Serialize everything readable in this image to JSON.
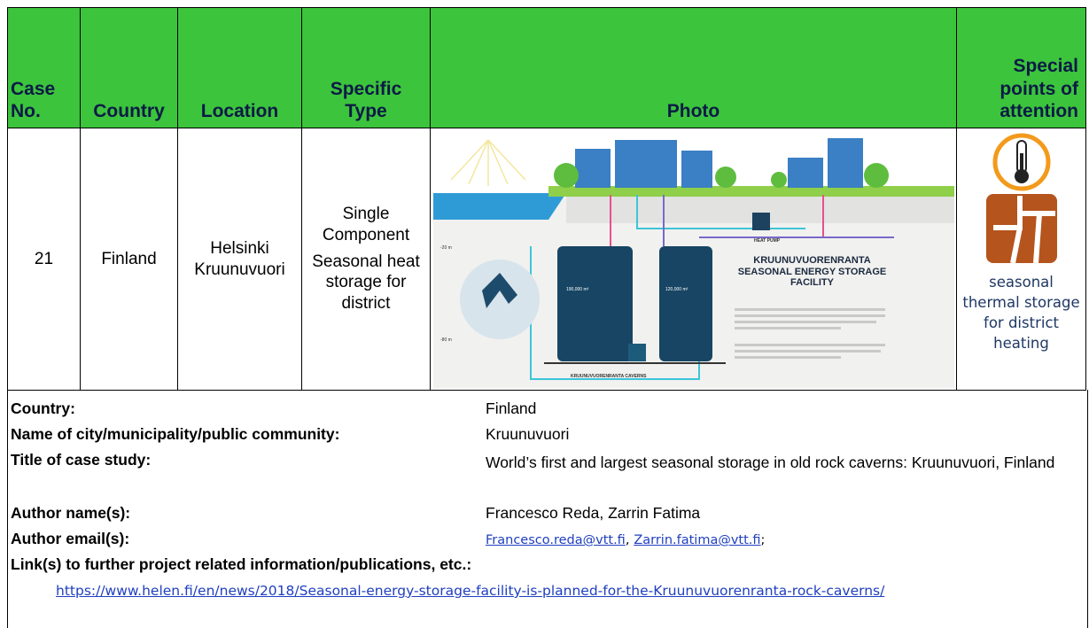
{
  "table": {
    "headers": [
      "Case No.",
      "Country",
      "Location",
      "Specific Type",
      "Photo",
      "Special points of attention"
    ],
    "row": {
      "case_no": "21",
      "country": "Finland",
      "location": "Helsinki Kruunuvuori",
      "specific_type": [
        "Single Component",
        "Seasonal heat storage for district"
      ],
      "photo": {
        "title": "KRUUNUVUORENRANTA SEASONAL ENERGY STORAGE FACILITY",
        "caverns": "KRUUNUVUORENRANTA CAVERNS",
        "heat_pump": "HEAT PUMP",
        "volume_left": "190,000 m³",
        "volume_right": "120,000 m³",
        "depth_top": "-20 m",
        "depth_bottom": "-80 m"
      },
      "special_points": "seasonal thermal storage for district heating"
    }
  },
  "info": {
    "fields": [
      {
        "label": "Country:",
        "value": "Finland"
      },
      {
        "label": "Name of city/municipality/public community:",
        "value": "Kruunuvuori"
      },
      {
        "label": "Title of case study:",
        "value": "World’s first and largest seasonal storage in old rock caverns: Kruunuvuori, Finland"
      },
      {
        "label": "Author name(s):",
        "value": "Francesco Reda, Zarrin Fatima"
      }
    ],
    "email": {
      "label": "Author email(s):",
      "links": [
        "Francesco.reda@vtt.fi",
        "Zarrin.fatima@vtt.fi"
      ],
      "separator": ",",
      "end": ";"
    },
    "link": {
      "label": "Link(s) to further project related information/publications, etc.:",
      "url": "https://www.helen.fi/en/news/2018/Seasonal-energy-storage-facility-is-planned-for-the-Kruunuvuorenranta-rock-caverns/"
    }
  }
}
